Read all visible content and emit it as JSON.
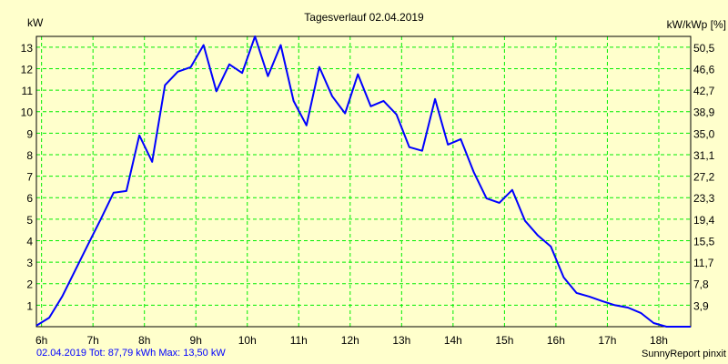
{
  "chart_data": {
    "type": "line",
    "title": "Tagesverlauf 02.04.2019",
    "ylabel": "kW",
    "ylabel_right": "kW/kWp [%]",
    "xlim": [
      5.9,
      18.62
    ],
    "ylim": [
      0,
      13.5
    ],
    "grid": true,
    "x_ticks": [
      6,
      7,
      8,
      9,
      10,
      11,
      12,
      13,
      14,
      15,
      16,
      17,
      18
    ],
    "x_tick_labels": [
      "6h",
      "7h",
      "8h",
      "9h",
      "10h",
      "11h",
      "12h",
      "13h",
      "14h",
      "15h",
      "16h",
      "17h",
      "18h"
    ],
    "y_ticks": [
      1,
      2,
      3,
      4,
      5,
      6,
      7,
      8,
      9,
      10,
      11,
      12,
      13
    ],
    "y_tick_labels": [
      "1",
      "2",
      "3",
      "4",
      "5",
      "6",
      "7",
      "8",
      "9",
      "10",
      "11",
      "12",
      "13"
    ],
    "y_right_tick_labels": [
      "3,9",
      "7,8",
      "11,7",
      "15,5",
      "19,4",
      "23,3",
      "27,2",
      "31,1",
      "35,0",
      "38,9",
      "42,7",
      "46,6",
      "50,5"
    ],
    "series": [
      {
        "name": "kW",
        "color": "#0000ff",
        "x": [
          5.9,
          6.15,
          6.4,
          6.65,
          6.9,
          7.15,
          7.4,
          7.65,
          7.9,
          8.15,
          8.4,
          8.65,
          8.9,
          9.15,
          9.4,
          9.65,
          9.9,
          10.15,
          10.4,
          10.65,
          10.9,
          11.15,
          11.4,
          11.65,
          11.9,
          12.15,
          12.4,
          12.65,
          12.9,
          13.15,
          13.4,
          13.65,
          13.9,
          14.15,
          14.4,
          14.65,
          14.9,
          15.15,
          15.4,
          15.65,
          15.9,
          16.15,
          16.4,
          16.65,
          16.9,
          17.15,
          17.4,
          17.65,
          17.9,
          18.15,
          18.62
        ],
        "values": [
          0.05,
          0.42,
          1.4,
          2.6,
          3.8,
          5.0,
          6.23,
          6.31,
          8.9,
          7.67,
          11.23,
          11.86,
          12.07,
          13.1,
          10.95,
          12.2,
          11.8,
          13.5,
          11.65,
          13.1,
          10.5,
          9.36,
          12.08,
          10.72,
          9.92,
          11.74,
          10.25,
          10.5,
          9.87,
          8.35,
          8.18,
          10.59,
          8.47,
          8.72,
          7.2,
          5.97,
          5.76,
          6.36,
          4.92,
          4.24,
          3.73,
          2.3,
          1.57,
          1.4,
          1.19,
          1.0,
          0.89,
          0.64,
          0.17,
          0,
          0
        ]
      }
    ],
    "footer_left": "02.04.2019 Tot: 87,79 kWh Max: 13,50 kW",
    "footer_right": "SunnyReport pinxit",
    "colors": {
      "background": "#ffffcc",
      "grid": "#00ee00",
      "line": "#0000ff",
      "footer": "#0000ff"
    }
  }
}
